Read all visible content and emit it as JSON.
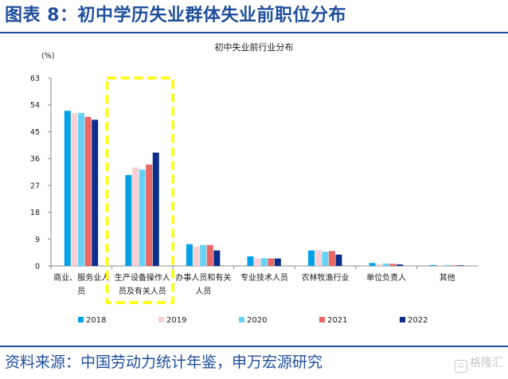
{
  "header": {
    "title": "图表 8：初中学历失业群体失业前职位分布"
  },
  "footer": {
    "source": "资料来源：中国劳动力统计年鉴，申万宏源研究",
    "watermark": "格隆汇"
  },
  "chart_data": {
    "type": "bar",
    "title": "初中失业前行业分布",
    "ylabel": "(%)",
    "ylim": [
      0,
      63
    ],
    "yticks": [
      0,
      9,
      18,
      27,
      36,
      45,
      54,
      63
    ],
    "categories": [
      [
        "商业、服务业人",
        "员"
      ],
      [
        "生产设备操作人",
        "员及有关人员"
      ],
      [
        "办事人员和有关",
        "人员"
      ],
      [
        "专业技术人员"
      ],
      [
        "农林牧渔行业"
      ],
      [
        "单位负责人"
      ],
      [
        "其他"
      ]
    ],
    "series": [
      {
        "name": "2018",
        "color": "#00a1e6",
        "values": [
          52.0,
          30.5,
          7.3,
          3.2,
          5.2,
          1.0,
          0.3
        ]
      },
      {
        "name": "2019",
        "color": "#f9cfd4",
        "values": [
          51.2,
          33.0,
          6.5,
          2.5,
          5.3,
          0.6,
          0.2
        ]
      },
      {
        "name": "2020",
        "color": "#67d2f5",
        "values": [
          51.3,
          32.3,
          7.0,
          2.6,
          4.8,
          0.8,
          0.3
        ]
      },
      {
        "name": "2021",
        "color": "#e86664",
        "values": [
          50.0,
          34.0,
          7.0,
          2.5,
          5.0,
          0.7,
          0.2
        ]
      },
      {
        "name": "2022",
        "color": "#0c2d8a",
        "values": [
          49.0,
          38.0,
          5.2,
          2.5,
          3.8,
          0.5,
          0.2
        ]
      }
    ],
    "highlight": {
      "category_index": 1,
      "style": "dashed",
      "color": "#ffff00"
    },
    "grid": false,
    "legend": "bottom"
  }
}
